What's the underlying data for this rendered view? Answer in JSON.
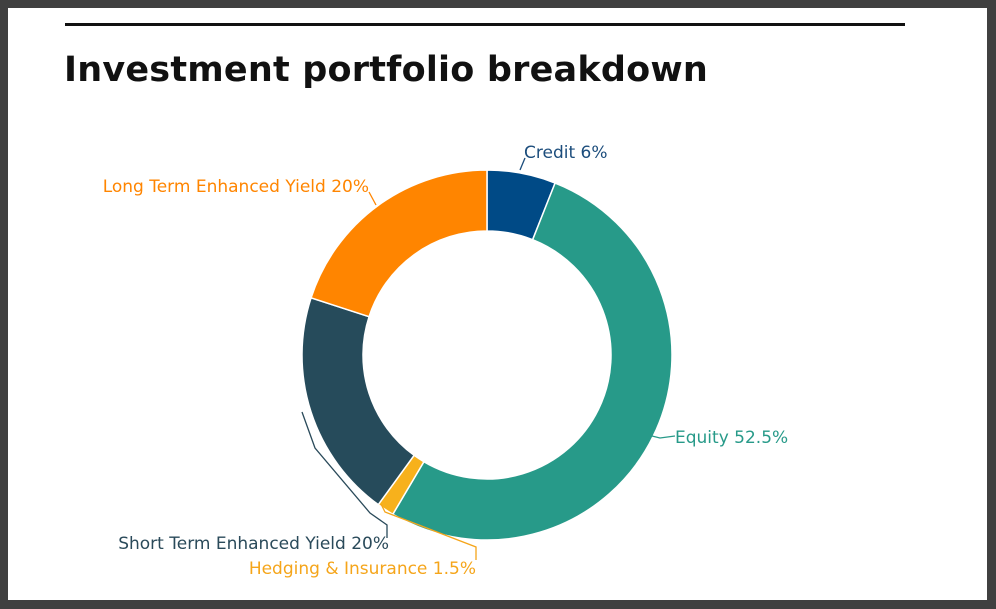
{
  "title": "Investment portfolio breakdown",
  "chart_data": {
    "type": "pie",
    "donut": true,
    "title": "Investment portfolio breakdown",
    "slices": [
      {
        "name": "Credit",
        "value": 6,
        "label": "Credit 6%",
        "color": "#004a86"
      },
      {
        "name": "Equity",
        "value": 52.5,
        "label": "Equity 52.5%",
        "color": "#279a89"
      },
      {
        "name": "Hedging & Insurance",
        "value": 1.5,
        "label": "Hedging & Insurance 1.5%",
        "color": "#f7b11c"
      },
      {
        "name": "Short Term Enhanced Yield",
        "value": 20,
        "label": "Short Term Enhanced Yield 20%",
        "color": "#264b5b"
      },
      {
        "name": "Long Term Enhanced Yield",
        "value": 20,
        "label": "Long Term Enhanced Yield 20%",
        "color": "#ff8500"
      }
    ],
    "label_colors": {
      "Credit": "#1c4d7c",
      "Equity": "#279a89",
      "Hedging & Insurance": "#f5a51a",
      "Short Term Enhanced Yield": "#2a4a5a",
      "Long Term Enhanced Yield": "#ff8500"
    }
  }
}
